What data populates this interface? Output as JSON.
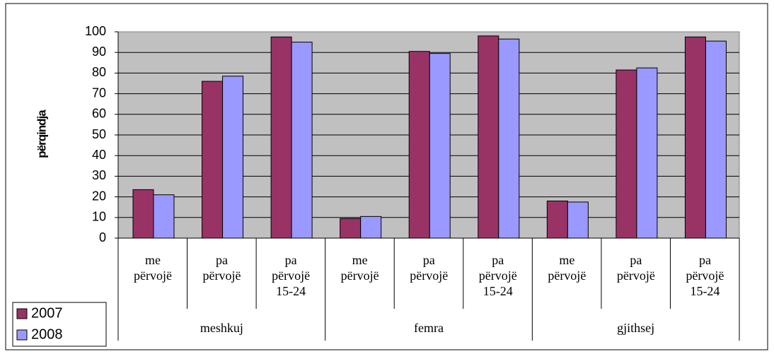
{
  "chart_data": {
    "type": "bar",
    "y_label": "përqindja",
    "categories": [
      "me\npërvojë",
      "pa\npërvojë",
      "pa\npërvojë\n15-24",
      "me\npërvojë",
      "pa\npërvojë",
      "pa\npërvojë\n15-24",
      "me\npërvojë",
      "pa\npërvojë",
      "pa\npërvojë\n15-24"
    ],
    "groups": [
      "meshkuj",
      "femra",
      "gjithsej"
    ],
    "series": [
      {
        "name": "2007",
        "color": "#993366",
        "values": [
          23.5,
          76,
          97.5,
          9.5,
          90.5,
          98,
          18,
          81.5,
          97.5
        ]
      },
      {
        "name": "2008",
        "color": "#9999ff",
        "values": [
          21,
          78.5,
          95,
          10.5,
          89.5,
          96.5,
          17.5,
          82.5,
          95.5
        ]
      }
    ],
    "ylim": [
      0,
      100
    ],
    "yticks": [
      0,
      10,
      20,
      30,
      40,
      50,
      60,
      70,
      80,
      90,
      100
    ],
    "grid": true,
    "legend": "bottom-left"
  }
}
